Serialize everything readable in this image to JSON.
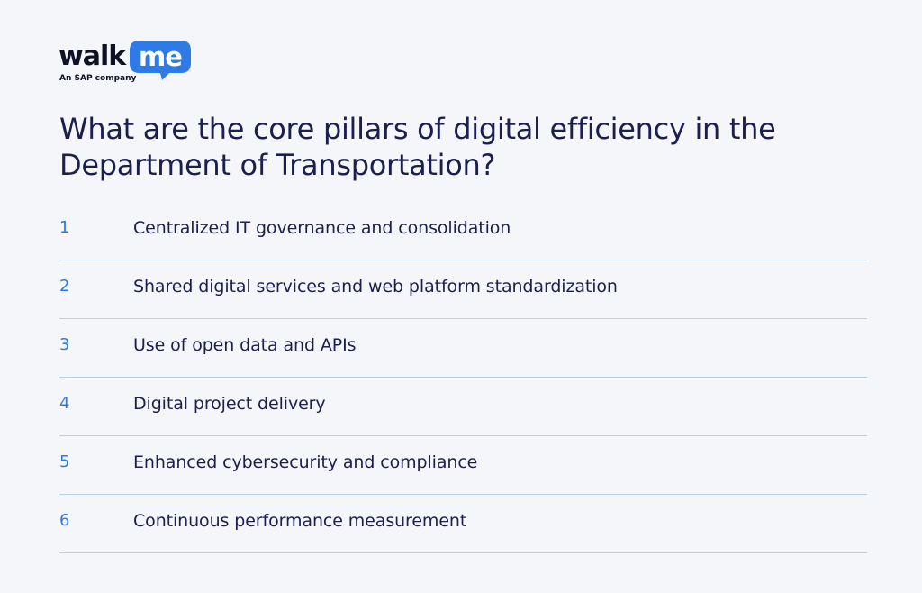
{
  "brand": {
    "word1": "walk",
    "word2": "me",
    "tagline": "An SAP company",
    "accent_color": "#2f7ae5"
  },
  "title": "What are the core pillars of digital efficiency in the Department of Transportation?",
  "pillars": [
    {
      "number": "1",
      "label": "Centralized IT governance and consolidation"
    },
    {
      "number": "2",
      "label": "Shared digital services and web platform standardization"
    },
    {
      "number": "3",
      "label": "Use of open data and APIs"
    },
    {
      "number": "4",
      "label": "Digital project delivery"
    },
    {
      "number": "5",
      "label": "Enhanced cybersecurity and compliance"
    },
    {
      "number": "6",
      "label": "Continuous performance measurement"
    }
  ]
}
